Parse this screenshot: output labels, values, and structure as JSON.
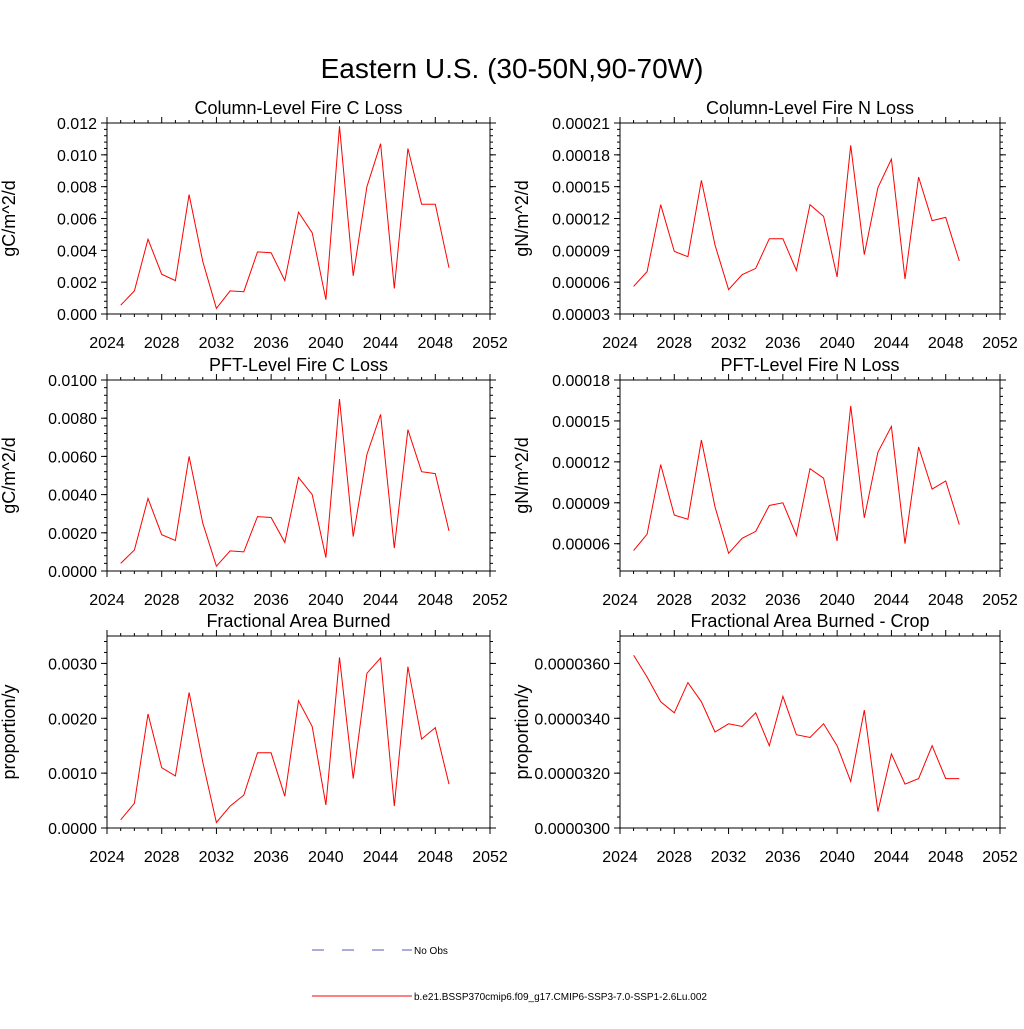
{
  "figure": {
    "title": "Eastern U.S. (30-50N,90-70W)"
  },
  "legend": {
    "entries": [
      {
        "label": "No Obs",
        "color": "#5a5ab4",
        "style": "dashed"
      },
      {
        "label": "b.e21.BSSP370cmip6.f09_g17.CMIP6-SSP3-7.0-SSP1-2.6Lu.002",
        "color": "#ff0000",
        "style": "solid"
      }
    ]
  },
  "chart_data": [
    {
      "type": "line",
      "title": "Column-Level Fire C Loss",
      "ylabel": "gC/m^2/d",
      "xlim": [
        2024,
        2052
      ],
      "ylim": [
        0,
        0.012
      ],
      "xticks": [
        "2024",
        "2028",
        "2032",
        "2036",
        "2040",
        "2044",
        "2048",
        "2052"
      ],
      "xtick_values": [
        2024,
        2028,
        2032,
        2036,
        2040,
        2044,
        2048,
        2052
      ],
      "yticks": [
        "0.000",
        "0.002",
        "0.004",
        "0.006",
        "0.008",
        "0.010",
        "0.012"
      ],
      "ytick_values": [
        0,
        0.002,
        0.004,
        0.006,
        0.008,
        0.01,
        0.012
      ],
      "series": [
        {
          "color": "#ff0000",
          "x": [
            2025,
            2026,
            2027,
            2028,
            2029,
            2030,
            2031,
            2032,
            2033,
            2034,
            2035,
            2036,
            2037,
            2038,
            2039,
            2040,
            2041,
            2042,
            2043,
            2044,
            2045,
            2046,
            2047,
            2048,
            2049
          ],
          "values": [
            0.00055,
            0.00145,
            0.0047,
            0.0025,
            0.0021,
            0.0075,
            0.0033,
            0.00035,
            0.00145,
            0.0014,
            0.0039,
            0.00385,
            0.0021,
            0.0064,
            0.0051,
            0.0009,
            0.0118,
            0.0024,
            0.008,
            0.0107,
            0.0016,
            0.0104,
            0.0069,
            0.0069,
            0.0029
          ]
        }
      ]
    },
    {
      "type": "line",
      "title": "Column-Level Fire N Loss",
      "ylabel": "gN/m^2/d",
      "xlim": [
        2024,
        2052
      ],
      "ylim": [
        3e-05,
        0.00021
      ],
      "xticks": [
        "2024",
        "2028",
        "2032",
        "2036",
        "2040",
        "2044",
        "2048",
        "2052"
      ],
      "xtick_values": [
        2024,
        2028,
        2032,
        2036,
        2040,
        2044,
        2048,
        2052
      ],
      "yticks": [
        "0.00003",
        "0.00006",
        "0.00009",
        "0.00012",
        "0.00015",
        "0.00018",
        "0.00021"
      ],
      "ytick_values": [
        3e-05,
        6e-05,
        9e-05,
        0.00012,
        0.00015,
        0.00018,
        0.00021
      ],
      "series": [
        {
          "color": "#ff0000",
          "x": [
            2025,
            2026,
            2027,
            2028,
            2029,
            2030,
            2031,
            2032,
            2033,
            2034,
            2035,
            2036,
            2037,
            2038,
            2039,
            2040,
            2041,
            2042,
            2043,
            2044,
            2045,
            2046,
            2047,
            2048,
            2049
          ],
          "values": [
            5.6e-05,
            7e-05,
            0.000133,
            8.9e-05,
            8.4e-05,
            0.000156,
            9.5e-05,
            5.3e-05,
            6.7e-05,
            7.3e-05,
            0.000101,
            0.000101,
            7.1e-05,
            0.000133,
            0.000122,
            6.5e-05,
            0.000189,
            8.6e-05,
            0.000149,
            0.000176,
            6.3e-05,
            0.000159,
            0.000118,
            0.000121,
            8e-05
          ]
        }
      ]
    },
    {
      "type": "line",
      "title": "PFT-Level Fire C Loss",
      "ylabel": "gC/m^2/d",
      "xlim": [
        2024,
        2052
      ],
      "ylim": [
        0,
        0.01
      ],
      "xticks": [
        "2024",
        "2028",
        "2032",
        "2036",
        "2040",
        "2044",
        "2048",
        "2052"
      ],
      "xtick_values": [
        2024,
        2028,
        2032,
        2036,
        2040,
        2044,
        2048,
        2052
      ],
      "yticks": [
        "0.0000",
        "0.0020",
        "0.0040",
        "0.0060",
        "0.0080",
        "0.0100"
      ],
      "ytick_values": [
        0,
        0.002,
        0.004,
        0.006,
        0.008,
        0.01
      ],
      "series": [
        {
          "color": "#ff0000",
          "x": [
            2025,
            2026,
            2027,
            2028,
            2029,
            2030,
            2031,
            2032,
            2033,
            2034,
            2035,
            2036,
            2037,
            2038,
            2039,
            2040,
            2041,
            2042,
            2043,
            2044,
            2045,
            2046,
            2047,
            2048,
            2049
          ],
          "values": [
            0.0004,
            0.0011,
            0.0038,
            0.0019,
            0.0016,
            0.006,
            0.0025,
            0.00025,
            0.00105,
            0.001,
            0.00285,
            0.0028,
            0.0015,
            0.0049,
            0.004,
            0.0007,
            0.009,
            0.0018,
            0.0061,
            0.0082,
            0.0012,
            0.0074,
            0.0052,
            0.0051,
            0.0021
          ]
        }
      ]
    },
    {
      "type": "line",
      "title": "PFT-Level Fire N Loss",
      "ylabel": "gN/m^2/d",
      "xlim": [
        2024,
        2052
      ],
      "ylim": [
        4e-05,
        0.00018
      ],
      "xticks": [
        "2024",
        "2028",
        "2032",
        "2036",
        "2040",
        "2044",
        "2048",
        "2052"
      ],
      "xtick_values": [
        2024,
        2028,
        2032,
        2036,
        2040,
        2044,
        2048,
        2052
      ],
      "yticks": [
        "0.00006",
        "0.00009",
        "0.00012",
        "0.00015",
        "0.00018"
      ],
      "ytick_values": [
        6e-05,
        9e-05,
        0.00012,
        0.00015,
        0.00018
      ],
      "series": [
        {
          "color": "#ff0000",
          "x": [
            2025,
            2026,
            2027,
            2028,
            2029,
            2030,
            2031,
            2032,
            2033,
            2034,
            2035,
            2036,
            2037,
            2038,
            2039,
            2040,
            2041,
            2042,
            2043,
            2044,
            2045,
            2046,
            2047,
            2048,
            2049
          ],
          "values": [
            5.5e-05,
            6.7e-05,
            0.000118,
            8.1e-05,
            7.8e-05,
            0.000136,
            8.7e-05,
            5.3e-05,
            6.4e-05,
            6.9e-05,
            8.8e-05,
            9e-05,
            6.6e-05,
            0.000115,
            0.000108,
            6.2e-05,
            0.000161,
            7.9e-05,
            0.000127,
            0.000146,
            6e-05,
            0.000131,
            0.0001,
            0.000106,
            7.4e-05
          ]
        }
      ]
    },
    {
      "type": "line",
      "title": "Fractional Area Burned",
      "ylabel": "proportion/y",
      "xlim": [
        2024,
        2052
      ],
      "ylim": [
        0,
        0.0035
      ],
      "xticks": [
        "2024",
        "2028",
        "2032",
        "2036",
        "2040",
        "2044",
        "2048",
        "2052"
      ],
      "xtick_values": [
        2024,
        2028,
        2032,
        2036,
        2040,
        2044,
        2048,
        2052
      ],
      "yticks": [
        "0.0000",
        "0.0010",
        "0.0020",
        "0.0030"
      ],
      "ytick_values": [
        0,
        0.001,
        0.002,
        0.003
      ],
      "series": [
        {
          "color": "#ff0000",
          "x": [
            2025,
            2026,
            2027,
            2028,
            2029,
            2030,
            2031,
            2032,
            2033,
            2034,
            2035,
            2036,
            2037,
            2038,
            2039,
            2040,
            2041,
            2042,
            2043,
            2044,
            2045,
            2046,
            2047,
            2048,
            2049
          ],
          "values": [
            0.00015,
            0.00045,
            0.00208,
            0.0011,
            0.00095,
            0.00247,
            0.0012,
            0.0001,
            0.0004,
            0.0006,
            0.00137,
            0.00137,
            0.00058,
            0.00232,
            0.00185,
            0.00042,
            0.00311,
            0.0009,
            0.00282,
            0.0031,
            0.0004,
            0.00294,
            0.00162,
            0.00183,
            0.0008
          ]
        }
      ]
    },
    {
      "type": "line",
      "title": "Fractional Area Burned - Crop",
      "ylabel": "proportion/y",
      "xlim": [
        2024,
        2052
      ],
      "ylim": [
        3e-05,
        3.7e-05
      ],
      "xticks": [
        "2024",
        "2028",
        "2032",
        "2036",
        "2040",
        "2044",
        "2048",
        "2052"
      ],
      "xtick_values": [
        2024,
        2028,
        2032,
        2036,
        2040,
        2044,
        2048,
        2052
      ],
      "yticks": [
        "0.0000300",
        "0.0000320",
        "0.0000340",
        "0.0000360"
      ],
      "ytick_values": [
        3e-05,
        3.2e-05,
        3.4e-05,
        3.6e-05
      ],
      "series": [
        {
          "color": "#ff0000",
          "x": [
            2025,
            2026,
            2027,
            2028,
            2029,
            2030,
            2031,
            2032,
            2033,
            2034,
            2035,
            2036,
            2037,
            2038,
            2039,
            2040,
            2041,
            2042,
            2043,
            2044,
            2045,
            2046,
            2047,
            2048,
            2049
          ],
          "values": [
            3.63e-05,
            3.55e-05,
            3.46e-05,
            3.42e-05,
            3.53e-05,
            3.46e-05,
            3.35e-05,
            3.38e-05,
            3.37e-05,
            3.42e-05,
            3.3e-05,
            3.48e-05,
            3.34e-05,
            3.33e-05,
            3.38e-05,
            3.3e-05,
            3.17e-05,
            3.43e-05,
            3.06e-05,
            3.27e-05,
            3.16e-05,
            3.18e-05,
            3.3e-05,
            3.18e-05,
            3.18e-05
          ]
        }
      ]
    }
  ]
}
